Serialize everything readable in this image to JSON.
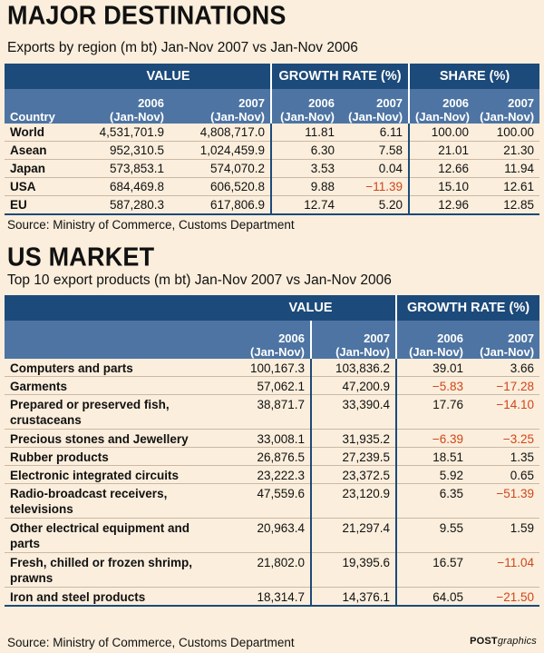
{
  "section1": {
    "title": "MAJOR DESTINATIONS",
    "subtitle": "Exports by region (m bt) Jan-Nov 2007 vs Jan-Nov 2006",
    "groups": [
      "VALUE",
      "GROWTH RATE (%)",
      "SHARE (%)"
    ],
    "country_label": "Country",
    "year1": "2006",
    "year2": "2007",
    "period": "(Jan-Nov)",
    "rows": [
      {
        "country": "World",
        "value_2006": "4,531,701.9",
        "value_2007": "4,808,717.0",
        "growth_2006": "11.81",
        "growth_2007": "6.11",
        "share_2006": "100.00",
        "share_2007": "100.00"
      },
      {
        "country": "Asean",
        "value_2006": "952,310.5",
        "value_2007": "1,024,459.9",
        "growth_2006": "6.30",
        "growth_2007": "7.58",
        "share_2006": "21.01",
        "share_2007": "21.30"
      },
      {
        "country": "Japan",
        "value_2006": "573,853.1",
        "value_2007": "574,070.2",
        "growth_2006": "3.53",
        "growth_2007": "0.04",
        "share_2006": "12.66",
        "share_2007": "11.94"
      },
      {
        "country": "USA",
        "value_2006": "684,469.8",
        "value_2007": "606,520.8",
        "growth_2006": "9.88",
        "growth_2007": "−11.39",
        "share_2006": "15.10",
        "share_2007": "12.61"
      },
      {
        "country": "EU",
        "value_2006": "587,280.3",
        "value_2007": "617,806.9",
        "growth_2006": "12.74",
        "growth_2007": "5.20",
        "share_2006": "12.96",
        "share_2007": "12.85"
      }
    ],
    "source": "Source: Ministry of Commerce, Customs Department"
  },
  "section2": {
    "title": "US MARKET",
    "subtitle": "Top 10 export products (m bt) Jan-Nov 2007 vs Jan-Nov 2006",
    "groups": [
      "VALUE",
      "GROWTH RATE (%)"
    ],
    "year1": "2006",
    "year2": "2007",
    "period": "(Jan-Nov)",
    "rows": [
      {
        "product": "Computers and parts",
        "value_2006": "100,167.3",
        "value_2007": "103,836.2",
        "growth_2006": "39.01",
        "growth_2007": "3.66"
      },
      {
        "product": "Garments",
        "value_2006": "57,062.1",
        "value_2007": "47,200.9",
        "growth_2006": "−5.83",
        "growth_2007": "−17.28"
      },
      {
        "product": "Prepared or preserved fish, crustaceans",
        "value_2006": "38,871.7",
        "value_2007": "33,390.4",
        "growth_2006": "17.76",
        "growth_2007": "−14.10"
      },
      {
        "product": "Precious stones and Jewellery",
        "value_2006": "33,008.1",
        "value_2007": "31,935.2",
        "growth_2006": "−6.39",
        "growth_2007": "−3.25"
      },
      {
        "product": "Rubber products",
        "value_2006": "26,876.5",
        "value_2007": "27,239.5",
        "growth_2006": "18.51",
        "growth_2007": "1.35"
      },
      {
        "product": "Electronic integrated circuits",
        "value_2006": "23,222.3",
        "value_2007": "23,372.5",
        "growth_2006": "5.92",
        "growth_2007": "0.65"
      },
      {
        "product": "Radio-broadcast receivers, televisions",
        "value_2006": "47,559.6",
        "value_2007": "23,120.9",
        "growth_2006": "6.35",
        "growth_2007": "−51.39"
      },
      {
        "product": "Other electrical equipment and parts",
        "value_2006": "20,963.4",
        "value_2007": "21,297.4",
        "growth_2006": "9.55",
        "growth_2007": "1.59"
      },
      {
        "product": "Fresh, chilled or frozen shrimp, prawns",
        "value_2006": "21,802.0",
        "value_2007": "19,395.6",
        "growth_2006": "16.57",
        "growth_2007": "−11.04"
      },
      {
        "product": "Iron and steel products",
        "value_2006": "18,314.7",
        "value_2007": "14,376.1",
        "growth_2006": "64.05",
        "growth_2007": "−21.50"
      }
    ],
    "source": "Source: Ministry of Commerce, Customs Department"
  },
  "credit": {
    "bold": "POST",
    "italic": "graphics"
  },
  "colors": {
    "background": "#fbeedc",
    "header_dark": "#1c4a7a",
    "header_light": "#4d74a3",
    "negative": "#d0451a"
  },
  "chart_data": [
    {
      "type": "table",
      "title": "MAJOR DESTINATIONS",
      "columns": [
        "Country",
        "Value 2006",
        "Value 2007",
        "Growth 2006 (%)",
        "Growth 2007 (%)",
        "Share 2006 (%)",
        "Share 2007 (%)"
      ],
      "categories": [
        "World",
        "Asean",
        "Japan",
        "USA",
        "EU"
      ],
      "series": [
        {
          "name": "VALUE 2006",
          "values": [
            4531701.9,
            952310.5,
            573853.1,
            684469.8,
            587280.3
          ]
        },
        {
          "name": "VALUE 2007",
          "values": [
            4808717.0,
            1024459.9,
            574070.2,
            606520.8,
            617806.9
          ]
        },
        {
          "name": "GROWTH RATE 2006",
          "values": [
            11.81,
            6.3,
            3.53,
            9.88,
            12.74
          ]
        },
        {
          "name": "GROWTH RATE 2007",
          "values": [
            6.11,
            7.58,
            0.04,
            -11.39,
            5.2
          ]
        },
        {
          "name": "SHARE 2006",
          "values": [
            100.0,
            21.01,
            12.66,
            15.1,
            12.96
          ]
        },
        {
          "name": "SHARE 2007",
          "values": [
            100.0,
            21.3,
            11.94,
            12.61,
            12.85
          ]
        }
      ]
    },
    {
      "type": "table",
      "title": "US MARKET",
      "categories": [
        "Computers and parts",
        "Garments",
        "Prepared or preserved fish, crustaceans",
        "Precious stones and Jewellery",
        "Rubber products",
        "Electronic integrated circuits",
        "Radio-broadcast receivers, televisions",
        "Other electrical equipment and parts",
        "Fresh, chilled or frozen shrimp, prawns",
        "Iron and steel products"
      ],
      "series": [
        {
          "name": "VALUE 2006",
          "values": [
            100167.3,
            57062.1,
            38871.7,
            33008.1,
            26876.5,
            23222.3,
            47559.6,
            20963.4,
            21802.0,
            18314.7
          ]
        },
        {
          "name": "VALUE 2007",
          "values": [
            103836.2,
            47200.9,
            33390.4,
            31935.2,
            27239.5,
            23372.5,
            23120.9,
            21297.4,
            19395.6,
            14376.1
          ]
        },
        {
          "name": "GROWTH RATE 2006",
          "values": [
            39.01,
            -5.83,
            17.76,
            -6.39,
            18.51,
            5.92,
            6.35,
            9.55,
            16.57,
            64.05
          ]
        },
        {
          "name": "GROWTH RATE 2007",
          "values": [
            3.66,
            -17.28,
            -14.1,
            -3.25,
            1.35,
            0.65,
            -51.39,
            1.59,
            -11.04,
            -21.5
          ]
        }
      ]
    }
  ]
}
